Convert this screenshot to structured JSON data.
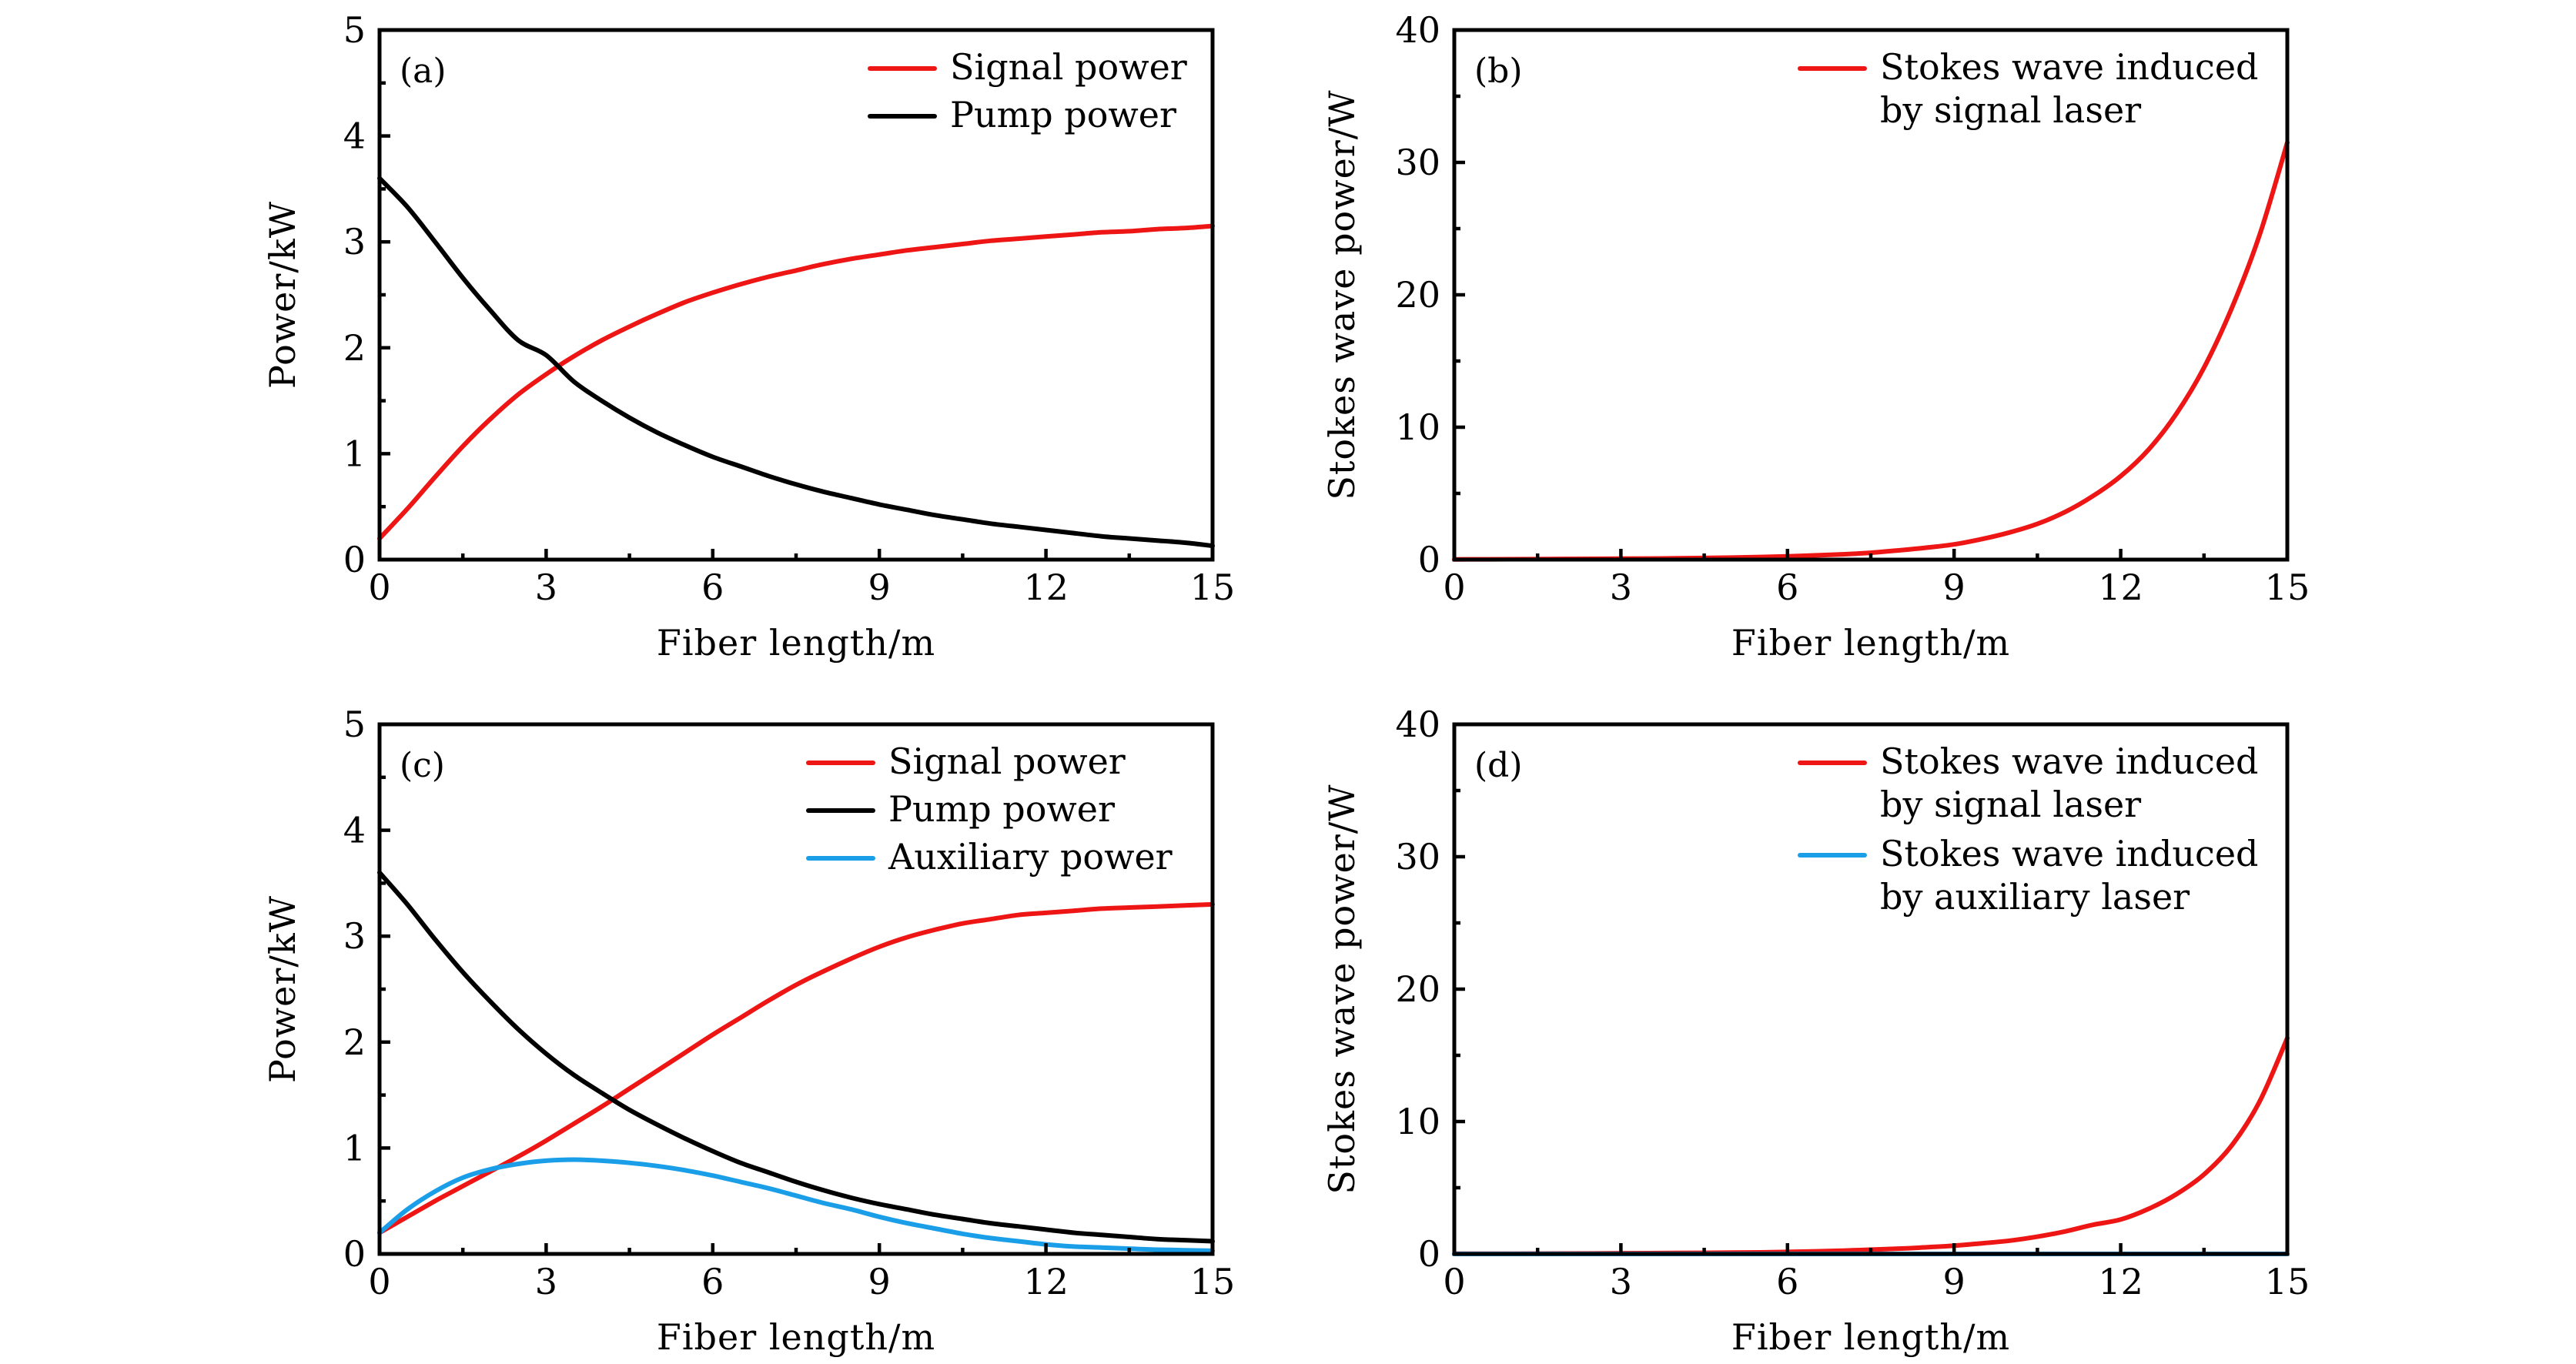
{
  "figure": {
    "colors": {
      "signal": "#ee1515",
      "pump": "#000000",
      "auxiliary": "#1a9ee8",
      "axes": "#000000"
    }
  },
  "chart_data": [
    {
      "id": "a",
      "type": "line",
      "panel_label": "(a)",
      "title": "",
      "xlabel": "Fiber length/m",
      "ylabel": "Power/kW",
      "xlim": [
        0,
        15
      ],
      "ylim": [
        0,
        5
      ],
      "xticks": [
        0,
        3,
        6,
        9,
        12,
        15
      ],
      "xtick_labels": [
        "0",
        "3",
        "6",
        "9",
        "12",
        "15"
      ],
      "yticks": [
        0,
        1,
        2,
        3,
        4,
        5
      ],
      "ytick_labels": [
        "0",
        "1",
        "2",
        "3",
        "4",
        "5"
      ],
      "x_minor_step": 1.5,
      "y_minor_step": 0.5,
      "grid": false,
      "legend_position": "top-right",
      "x": [
        0,
        0.5,
        1,
        1.5,
        2,
        2.5,
        3,
        3.5,
        4,
        4.5,
        5,
        5.5,
        6,
        6.5,
        7,
        7.5,
        8,
        8.5,
        9,
        9.5,
        10,
        10.5,
        11,
        11.5,
        12,
        12.5,
        13,
        13.5,
        14,
        14.5,
        15
      ],
      "series": [
        {
          "name": "Signal power",
          "color_key": "signal",
          "values": [
            0.2,
            0.48,
            0.78,
            1.07,
            1.33,
            1.56,
            1.75,
            1.92,
            2.07,
            2.2,
            2.32,
            2.43,
            2.52,
            2.6,
            2.67,
            2.73,
            2.79,
            2.84,
            2.88,
            2.92,
            2.95,
            2.98,
            3.01,
            3.03,
            3.05,
            3.07,
            3.09,
            3.1,
            3.12,
            3.13,
            3.15
          ]
        },
        {
          "name": "Pump power",
          "color_key": "pump",
          "values": [
            3.6,
            3.33,
            3.0,
            2.66,
            2.35,
            2.07,
            1.93,
            1.68,
            1.5,
            1.34,
            1.2,
            1.08,
            0.97,
            0.88,
            0.79,
            0.71,
            0.64,
            0.58,
            0.52,
            0.47,
            0.42,
            0.38,
            0.34,
            0.31,
            0.28,
            0.25,
            0.22,
            0.2,
            0.18,
            0.16,
            0.13
          ]
        }
      ]
    },
    {
      "id": "b",
      "type": "line",
      "panel_label": "(b)",
      "title": "",
      "xlabel": "Fiber length/m",
      "ylabel": "Stokes wave power/W",
      "xlim": [
        0,
        15
      ],
      "ylim": [
        0,
        40
      ],
      "xticks": [
        0,
        3,
        6,
        9,
        12,
        15
      ],
      "xtick_labels": [
        "0",
        "3",
        "6",
        "9",
        "12",
        "15"
      ],
      "yticks": [
        0,
        10,
        20,
        30,
        40
      ],
      "ytick_labels": [
        "0",
        "10",
        "20",
        "30",
        "40"
      ],
      "x_minor_step": 1.5,
      "y_minor_step": 5,
      "grid": false,
      "legend_position": "top-right",
      "x": [
        0,
        1,
        2,
        3,
        4,
        5,
        6,
        7,
        7.5,
        8,
        8.5,
        9,
        9.5,
        10,
        10.5,
        11,
        11.5,
        12,
        12.5,
        13,
        13.5,
        14,
        14.5,
        15
      ],
      "series": [
        {
          "name": "Stokes wave induced by signal laser",
          "legend_lines": [
            "Stokes wave induced",
            "by signal laser"
          ],
          "color_key": "signal",
          "values": [
            0.02,
            0.03,
            0.05,
            0.07,
            0.1,
            0.15,
            0.25,
            0.4,
            0.52,
            0.7,
            0.9,
            1.15,
            1.55,
            2.05,
            2.7,
            3.6,
            4.8,
            6.3,
            8.3,
            11.0,
            14.5,
            19.0,
            24.5,
            31.5
          ]
        }
      ]
    },
    {
      "id": "c",
      "type": "line",
      "panel_label": "(c)",
      "title": "",
      "xlabel": "Fiber length/m",
      "ylabel": "Power/kW",
      "xlim": [
        0,
        15
      ],
      "ylim": [
        0,
        5
      ],
      "xticks": [
        0,
        3,
        6,
        9,
        12,
        15
      ],
      "xtick_labels": [
        "0",
        "3",
        "6",
        "9",
        "12",
        "15"
      ],
      "yticks": [
        0,
        1,
        2,
        3,
        4,
        5
      ],
      "ytick_labels": [
        "0",
        "1",
        "2",
        "3",
        "4",
        "5"
      ],
      "x_minor_step": 1.5,
      "y_minor_step": 0.5,
      "grid": false,
      "legend_position": "top-right",
      "x": [
        0,
        0.5,
        1,
        1.5,
        2,
        2.5,
        3,
        3.5,
        4,
        4.5,
        5,
        5.5,
        6,
        6.5,
        7,
        7.5,
        8,
        8.5,
        9,
        9.5,
        10,
        10.5,
        11,
        11.5,
        12,
        12.5,
        13,
        13.5,
        14,
        14.5,
        15
      ],
      "series": [
        {
          "name": "Signal power",
          "color_key": "signal",
          "values": [
            0.2,
            0.35,
            0.5,
            0.64,
            0.78,
            0.92,
            1.07,
            1.23,
            1.39,
            1.56,
            1.73,
            1.9,
            2.07,
            2.23,
            2.39,
            2.54,
            2.67,
            2.79,
            2.9,
            2.99,
            3.06,
            3.12,
            3.16,
            3.2,
            3.22,
            3.24,
            3.26,
            3.27,
            3.28,
            3.29,
            3.3
          ]
        },
        {
          "name": "Pump power",
          "color_key": "pump",
          "values": [
            3.6,
            3.3,
            2.97,
            2.66,
            2.38,
            2.12,
            1.89,
            1.69,
            1.52,
            1.36,
            1.22,
            1.09,
            0.97,
            0.86,
            0.77,
            0.68,
            0.6,
            0.53,
            0.47,
            0.42,
            0.37,
            0.33,
            0.29,
            0.26,
            0.23,
            0.2,
            0.18,
            0.16,
            0.14,
            0.13,
            0.12
          ]
        },
        {
          "name": "Auxiliary power",
          "color_key": "auxiliary",
          "values": [
            0.2,
            0.42,
            0.59,
            0.72,
            0.8,
            0.85,
            0.88,
            0.89,
            0.88,
            0.86,
            0.83,
            0.79,
            0.74,
            0.68,
            0.62,
            0.55,
            0.48,
            0.42,
            0.35,
            0.29,
            0.24,
            0.19,
            0.15,
            0.12,
            0.09,
            0.07,
            0.06,
            0.05,
            0.04,
            0.035,
            0.03
          ]
        }
      ]
    },
    {
      "id": "d",
      "type": "line",
      "panel_label": "(d)",
      "title": "",
      "xlabel": "Fiber length/m",
      "ylabel": "Stokes wave power/W",
      "xlim": [
        0,
        15
      ],
      "ylim": [
        0,
        40
      ],
      "xticks": [
        0,
        3,
        6,
        9,
        12,
        15
      ],
      "xtick_labels": [
        "0",
        "3",
        "6",
        "9",
        "12",
        "15"
      ],
      "yticks": [
        0,
        10,
        20,
        30,
        40
      ],
      "ytick_labels": [
        "0",
        "10",
        "20",
        "30",
        "40"
      ],
      "x_minor_step": 1.5,
      "y_minor_step": 5,
      "grid": false,
      "legend_position": "top-right",
      "x": [
        0,
        1,
        2,
        3,
        4,
        5,
        6,
        7,
        8,
        8.5,
        9,
        9.5,
        10,
        10.5,
        11,
        11.5,
        12,
        12.5,
        13,
        13.5,
        14,
        14.5,
        15
      ],
      "series": [
        {
          "name": "Stokes wave induced by signal laser",
          "legend_lines": [
            "Stokes wave induced",
            "by signal laser"
          ],
          "color_key": "signal",
          "values": [
            0.01,
            0.02,
            0.03,
            0.05,
            0.07,
            0.1,
            0.15,
            0.25,
            0.4,
            0.5,
            0.62,
            0.8,
            1.0,
            1.3,
            1.7,
            2.2,
            2.6,
            3.4,
            4.5,
            6.0,
            8.2,
            11.5,
            16.3
          ]
        },
        {
          "name": "Stokes wave induced by auxiliary laser",
          "legend_lines": [
            "Stokes wave induced",
            "by auxiliary laser"
          ],
          "color_key": "auxiliary",
          "values": [
            0,
            0,
            0,
            0,
            0,
            0,
            0,
            0,
            0,
            0,
            0,
            0,
            0,
            0,
            0,
            0,
            0,
            0,
            0,
            0,
            0,
            0,
            0
          ]
        }
      ]
    }
  ]
}
